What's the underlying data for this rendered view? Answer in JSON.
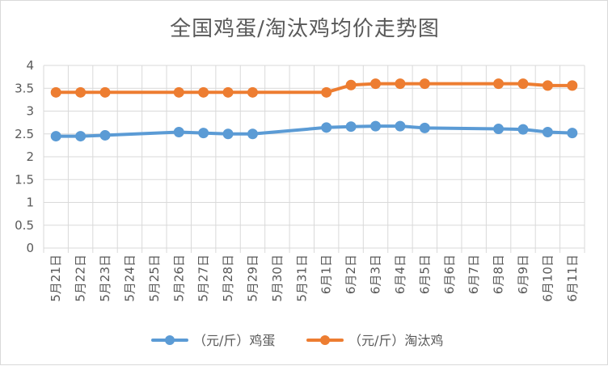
{
  "chart_data": {
    "type": "line",
    "title": "全国鸡蛋/淘汰鸡均价走势图",
    "xlabel": "",
    "ylabel": "",
    "ylim": [
      0,
      4
    ],
    "yticks": [
      0,
      0.5,
      1,
      1.5,
      2,
      2.5,
      3,
      3.5,
      4
    ],
    "ytick_labels": [
      "0",
      "0.5",
      "1",
      "1.5",
      "2",
      "2.5",
      "3",
      "3.5",
      "4"
    ],
    "grid": true,
    "legend_position": "bottom",
    "categories": [
      "5月21日",
      "5月22日",
      "5月23日",
      "5月24日",
      "5月25日",
      "5月26日",
      "5月27日",
      "5月28日",
      "5月29日",
      "5月30日",
      "5月31日",
      "6月1日",
      "6月2日",
      "6月3日",
      "6月4日",
      "6月5日",
      "6月6日",
      "6月7日",
      "6月8日",
      "6月9日",
      "6月10日",
      "6月11日"
    ],
    "series": [
      {
        "name": "（元/斤）鸡蛋",
        "color": "#5b9bd5",
        "values": [
          2.45,
          2.45,
          2.47,
          null,
          null,
          2.54,
          2.52,
          2.5,
          2.5,
          null,
          null,
          2.64,
          2.66,
          2.67,
          2.67,
          2.63,
          null,
          null,
          2.61,
          2.6,
          2.54,
          2.52
        ]
      },
      {
        "name": "（元/斤）淘汰鸡",
        "color": "#ed7d31",
        "values": [
          3.41,
          3.41,
          3.41,
          null,
          null,
          3.41,
          3.41,
          3.41,
          3.41,
          null,
          null,
          3.41,
          3.57,
          3.6,
          3.6,
          3.6,
          null,
          null,
          3.6,
          3.6,
          3.56,
          3.56
        ]
      }
    ]
  }
}
